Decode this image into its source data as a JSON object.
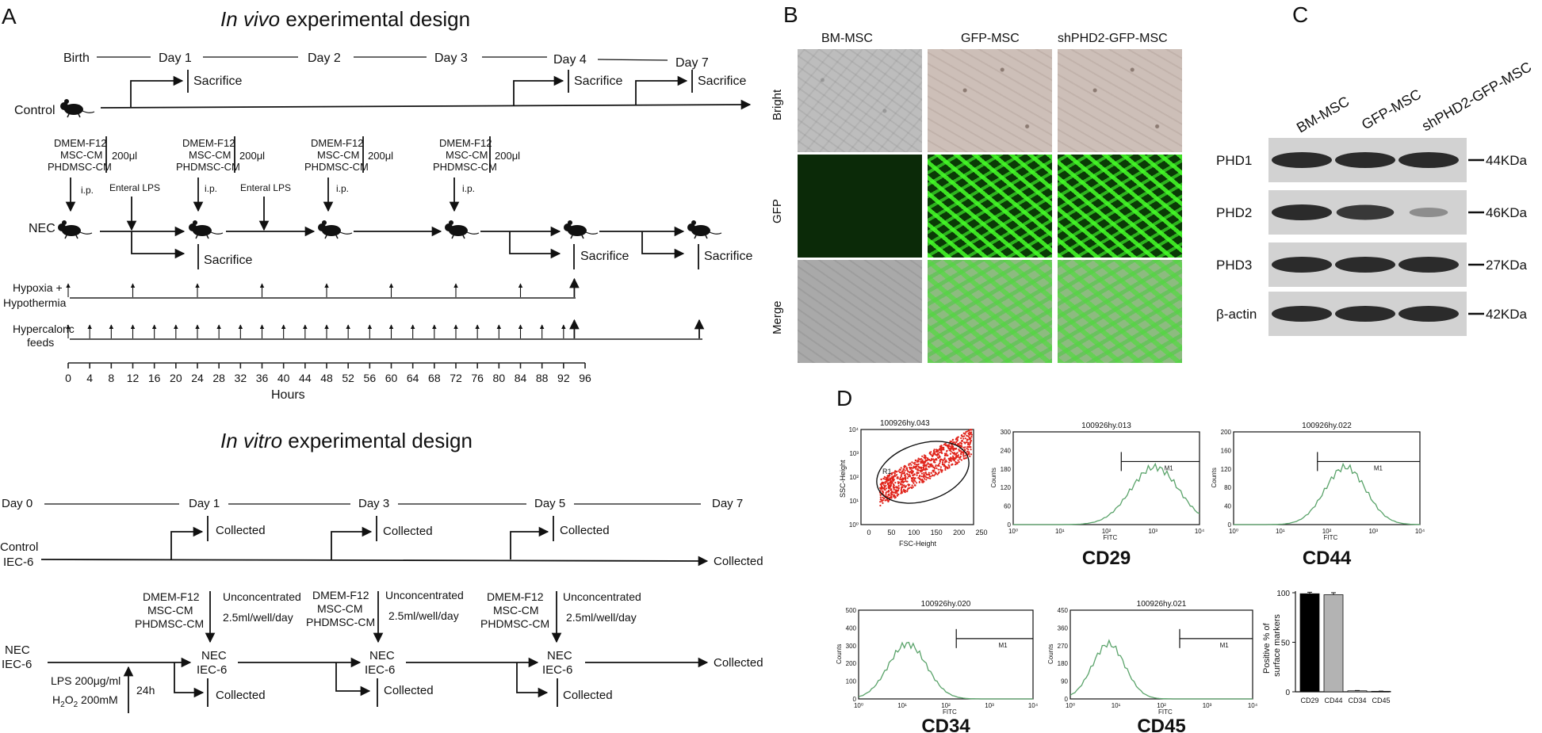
{
  "panels": {
    "a": "A",
    "b": "B",
    "c": "C",
    "d": "D"
  },
  "invivo": {
    "title_italic": "In vivo",
    "title_rest": " experimental design",
    "timeline": {
      "birth": "Birth",
      "day1": "Day 1",
      "day2": "Day 2",
      "day3": "Day 3",
      "day4": "Day 4",
      "day7": "Day 7"
    },
    "control": "Control",
    "sacrifice": "Sacrifice",
    "nec": "NEC",
    "treatments": [
      "DMEM-F12",
      "MSC-CM",
      "PHDMSC-CM"
    ],
    "volume": "200μl",
    "ip": "i.p.",
    "enteral_lps": "Enteral LPS",
    "hypoxia1": "Hypoxia +",
    "hypoxia2": "Hypothermia",
    "hypercaloric1": "Hypercaloric",
    "hypercaloric2": "feeds",
    "hours_ticks": [
      "0",
      "4",
      "8",
      "12",
      "16",
      "20",
      "24",
      "28",
      "32",
      "36",
      "40",
      "44",
      "48",
      "52",
      "56",
      "60",
      "64",
      "68",
      "72",
      "76",
      "80",
      "84",
      "88",
      "92",
      "96"
    ],
    "hours_label": "Hours"
  },
  "invitro": {
    "title_italic": "In vitro",
    "title_rest": " experimental design",
    "days": {
      "d0": "Day 0",
      "d1": "Day 1",
      "d3": "Day 3",
      "d5": "Day 5",
      "d7": "Day 7"
    },
    "control1": "Control",
    "control2": "IEC-6",
    "collected": "Collected",
    "nec1": "NEC",
    "nec2": "IEC-6",
    "treatments": [
      "DMEM-F12",
      "MSC-CM",
      "PHDMSC-CM"
    ],
    "unconc": "Unconcentrated",
    "dose": "2.5ml/well/day",
    "lps": "LPS 200μg/ml",
    "h2o2_pre": "H",
    "h2o2_sub1": "2",
    "h2o2_mid": "O",
    "h2o2_sub2": "2",
    "h2o2_post": " 200mM",
    "h24": "24h"
  },
  "panel_b": {
    "cols": [
      "BM-MSC",
      "GFP-MSC",
      "shPHD2-GFP-MSC"
    ],
    "rows": [
      "Bright",
      "GFP",
      "Merge"
    ]
  },
  "panel_c": {
    "cols": [
      "BM-MSC",
      "GFP-MSC",
      "shPHD2-GFP-MSC"
    ],
    "rows": [
      {
        "name": "PHD1",
        "mw": "44KDa"
      },
      {
        "name": "PHD2",
        "mw": "46KDa"
      },
      {
        "name": "PHD3",
        "mw": "27KDa"
      },
      {
        "name": "β-actin",
        "mw": "42KDa"
      }
    ],
    "band_intensity": [
      [
        1,
        1,
        1
      ],
      [
        1,
        0.9,
        0.2
      ],
      [
        1,
        1,
        1
      ],
      [
        1,
        1,
        1
      ]
    ]
  },
  "panel_d": {
    "scatter": {
      "file": "100926hy.043",
      "xlabel": "FSC-Height",
      "ylabel": "SSC-Height",
      "gate": "R1",
      "xticks": [
        "0",
        "50",
        "100",
        "150",
        "200",
        "250"
      ],
      "yticks": [
        "10⁰",
        "10¹",
        "10²",
        "10³",
        "10⁴"
      ]
    },
    "histograms": [
      {
        "file": "100926hy.013",
        "name": "CD29",
        "yticks": [
          "0",
          "60",
          "120",
          "180",
          "240",
          "300"
        ],
        "gate": "M1"
      },
      {
        "file": "100926hy.022",
        "name": "CD44",
        "yticks": [
          "0",
          "40",
          "80",
          "120",
          "160",
          "200"
        ],
        "gate": "M1"
      },
      {
        "file": "100926hy.020",
        "name": "CD34",
        "yticks": [
          "0",
          "100",
          "200",
          "300",
          "400",
          "500"
        ],
        "gate": "M1"
      },
      {
        "file": "100926hy.021",
        "name": "CD45",
        "yticks": [
          "0",
          "90",
          "180",
          "270",
          "360",
          "450"
        ],
        "gate": "M1"
      }
    ],
    "hist_xlabel": "FITC",
    "hist_ylabel": "Counts",
    "hist_xticks": [
      "10⁰",
      "10¹",
      "10²",
      "10³",
      "10⁴"
    ],
    "bar_chart": {
      "ylabel1": "Positive % of",
      "ylabel2": "surface markers",
      "yticks": [
        "0",
        "50",
        "100"
      ]
    }
  },
  "chart_data": {
    "type": "bar",
    "categories": [
      "CD29",
      "CD44",
      "CD34",
      "CD45"
    ],
    "values": [
      99,
      98,
      1,
      0.5
    ],
    "errors": [
      1.5,
      2,
      0.3,
      0.2
    ],
    "colors": [
      "#000000",
      "#b3b3b3",
      "#ffffff",
      "#ffffff"
    ],
    "ylabel": "Positive % of surface markers",
    "ylim": [
      0,
      100
    ]
  }
}
